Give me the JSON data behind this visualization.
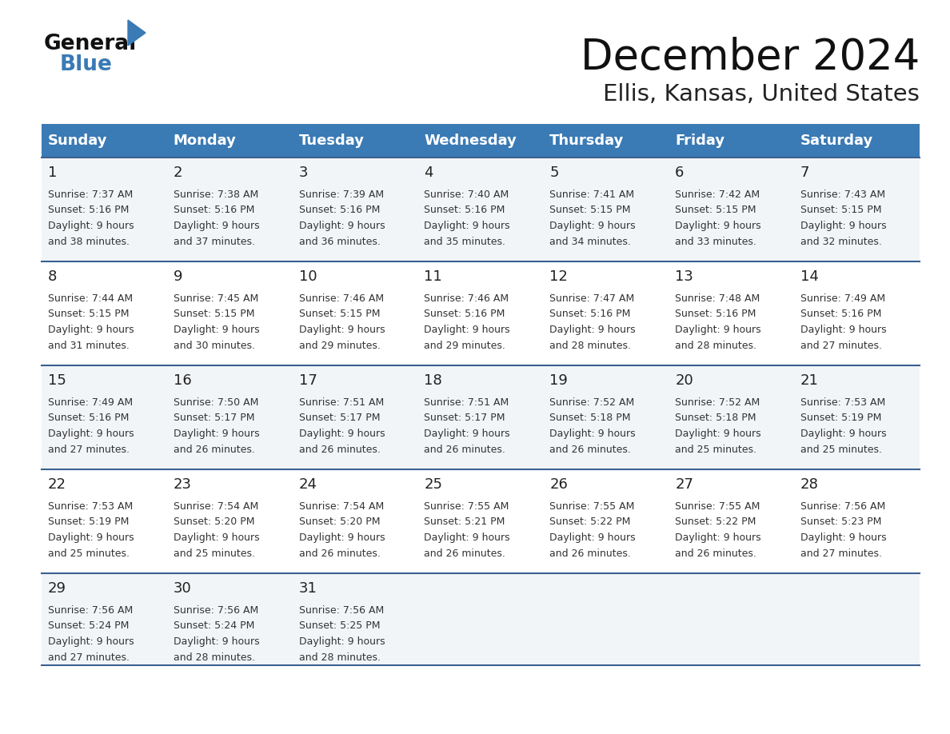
{
  "title": "December 2024",
  "subtitle": "Ellis, Kansas, United States",
  "days_of_week": [
    "Sunday",
    "Monday",
    "Tuesday",
    "Wednesday",
    "Thursday",
    "Friday",
    "Saturday"
  ],
  "header_bg_color": "#3a7ab5",
  "header_text_color": "#ffffff",
  "row_bg_even": "#f2f5f8",
  "row_bg_odd": "#ffffff",
  "cell_border_color": "#3a6090",
  "day_number_color": "#222222",
  "cell_text_color": "#333333",
  "title_color": "#111111",
  "subtitle_color": "#222222",
  "logo_general_color": "#111111",
  "logo_blue_color": "#3a7ab5",
  "calendar_data": [
    [
      {
        "day": 1,
        "sunrise": "7:37 AM",
        "sunset": "5:16 PM",
        "daylight_hours": 9,
        "daylight_minutes": 38
      },
      {
        "day": 2,
        "sunrise": "7:38 AM",
        "sunset": "5:16 PM",
        "daylight_hours": 9,
        "daylight_minutes": 37
      },
      {
        "day": 3,
        "sunrise": "7:39 AM",
        "sunset": "5:16 PM",
        "daylight_hours": 9,
        "daylight_minutes": 36
      },
      {
        "day": 4,
        "sunrise": "7:40 AM",
        "sunset": "5:16 PM",
        "daylight_hours": 9,
        "daylight_minutes": 35
      },
      {
        "day": 5,
        "sunrise": "7:41 AM",
        "sunset": "5:15 PM",
        "daylight_hours": 9,
        "daylight_minutes": 34
      },
      {
        "day": 6,
        "sunrise": "7:42 AM",
        "sunset": "5:15 PM",
        "daylight_hours": 9,
        "daylight_minutes": 33
      },
      {
        "day": 7,
        "sunrise": "7:43 AM",
        "sunset": "5:15 PM",
        "daylight_hours": 9,
        "daylight_minutes": 32
      }
    ],
    [
      {
        "day": 8,
        "sunrise": "7:44 AM",
        "sunset": "5:15 PM",
        "daylight_hours": 9,
        "daylight_minutes": 31
      },
      {
        "day": 9,
        "sunrise": "7:45 AM",
        "sunset": "5:15 PM",
        "daylight_hours": 9,
        "daylight_minutes": 30
      },
      {
        "day": 10,
        "sunrise": "7:46 AM",
        "sunset": "5:15 PM",
        "daylight_hours": 9,
        "daylight_minutes": 29
      },
      {
        "day": 11,
        "sunrise": "7:46 AM",
        "sunset": "5:16 PM",
        "daylight_hours": 9,
        "daylight_minutes": 29
      },
      {
        "day": 12,
        "sunrise": "7:47 AM",
        "sunset": "5:16 PM",
        "daylight_hours": 9,
        "daylight_minutes": 28
      },
      {
        "day": 13,
        "sunrise": "7:48 AM",
        "sunset": "5:16 PM",
        "daylight_hours": 9,
        "daylight_minutes": 28
      },
      {
        "day": 14,
        "sunrise": "7:49 AM",
        "sunset": "5:16 PM",
        "daylight_hours": 9,
        "daylight_minutes": 27
      }
    ],
    [
      {
        "day": 15,
        "sunrise": "7:49 AM",
        "sunset": "5:16 PM",
        "daylight_hours": 9,
        "daylight_minutes": 27
      },
      {
        "day": 16,
        "sunrise": "7:50 AM",
        "sunset": "5:17 PM",
        "daylight_hours": 9,
        "daylight_minutes": 26
      },
      {
        "day": 17,
        "sunrise": "7:51 AM",
        "sunset": "5:17 PM",
        "daylight_hours": 9,
        "daylight_minutes": 26
      },
      {
        "day": 18,
        "sunrise": "7:51 AM",
        "sunset": "5:17 PM",
        "daylight_hours": 9,
        "daylight_minutes": 26
      },
      {
        "day": 19,
        "sunrise": "7:52 AM",
        "sunset": "5:18 PM",
        "daylight_hours": 9,
        "daylight_minutes": 26
      },
      {
        "day": 20,
        "sunrise": "7:52 AM",
        "sunset": "5:18 PM",
        "daylight_hours": 9,
        "daylight_minutes": 25
      },
      {
        "day": 21,
        "sunrise": "7:53 AM",
        "sunset": "5:19 PM",
        "daylight_hours": 9,
        "daylight_minutes": 25
      }
    ],
    [
      {
        "day": 22,
        "sunrise": "7:53 AM",
        "sunset": "5:19 PM",
        "daylight_hours": 9,
        "daylight_minutes": 25
      },
      {
        "day": 23,
        "sunrise": "7:54 AM",
        "sunset": "5:20 PM",
        "daylight_hours": 9,
        "daylight_minutes": 25
      },
      {
        "day": 24,
        "sunrise": "7:54 AM",
        "sunset": "5:20 PM",
        "daylight_hours": 9,
        "daylight_minutes": 26
      },
      {
        "day": 25,
        "sunrise": "7:55 AM",
        "sunset": "5:21 PM",
        "daylight_hours": 9,
        "daylight_minutes": 26
      },
      {
        "day": 26,
        "sunrise": "7:55 AM",
        "sunset": "5:22 PM",
        "daylight_hours": 9,
        "daylight_minutes": 26
      },
      {
        "day": 27,
        "sunrise": "7:55 AM",
        "sunset": "5:22 PM",
        "daylight_hours": 9,
        "daylight_minutes": 26
      },
      {
        "day": 28,
        "sunrise": "7:56 AM",
        "sunset": "5:23 PM",
        "daylight_hours": 9,
        "daylight_minutes": 27
      }
    ],
    [
      {
        "day": 29,
        "sunrise": "7:56 AM",
        "sunset": "5:24 PM",
        "daylight_hours": 9,
        "daylight_minutes": 27
      },
      {
        "day": 30,
        "sunrise": "7:56 AM",
        "sunset": "5:24 PM",
        "daylight_hours": 9,
        "daylight_minutes": 28
      },
      {
        "day": 31,
        "sunrise": "7:56 AM",
        "sunset": "5:25 PM",
        "daylight_hours": 9,
        "daylight_minutes": 28
      },
      null,
      null,
      null,
      null
    ]
  ]
}
